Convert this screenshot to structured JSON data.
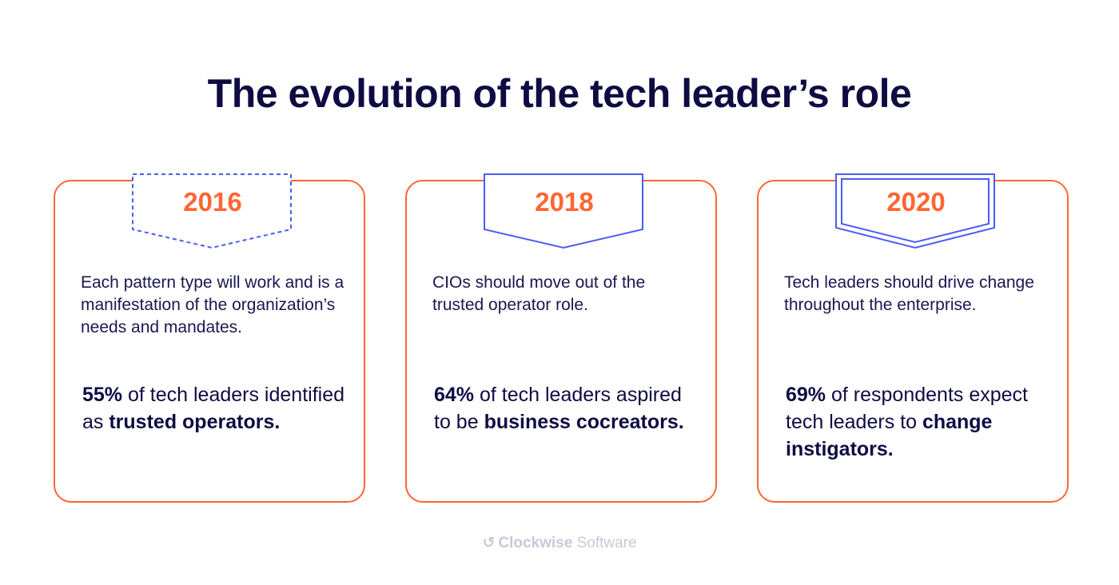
{
  "title": "The evolution of the tech leader’s role",
  "colors": {
    "accent": "#ff6633",
    "badge_outline": "#4a5cf0",
    "text": "#0f0c43"
  },
  "cards": [
    {
      "year": "2016",
      "badge_style": "dashed",
      "description": "Each pattern type will work and is a manifestation of the organization’s needs and mandates.",
      "stat": {
        "lead": "55%",
        "middle": " of tech leaders identified as ",
        "tail": "trusted operators."
      }
    },
    {
      "year": "2018",
      "badge_style": "solid",
      "description": "CIOs should move out of the trusted operator role.",
      "stat": {
        "lead": "64%",
        "middle": " of tech leaders aspired to be ",
        "tail": "business cocreators."
      }
    },
    {
      "year": "2020",
      "badge_style": "double",
      "description": "Tech leaders should drive change throughout the enterprise.",
      "stat": {
        "lead": "69%",
        "middle": " of respondents expect tech leaders to ",
        "tail": "change instigators."
      }
    }
  ],
  "logo": {
    "icon": "clockwise-logo-icon",
    "bold": "Clockwise",
    "light": "Software"
  }
}
